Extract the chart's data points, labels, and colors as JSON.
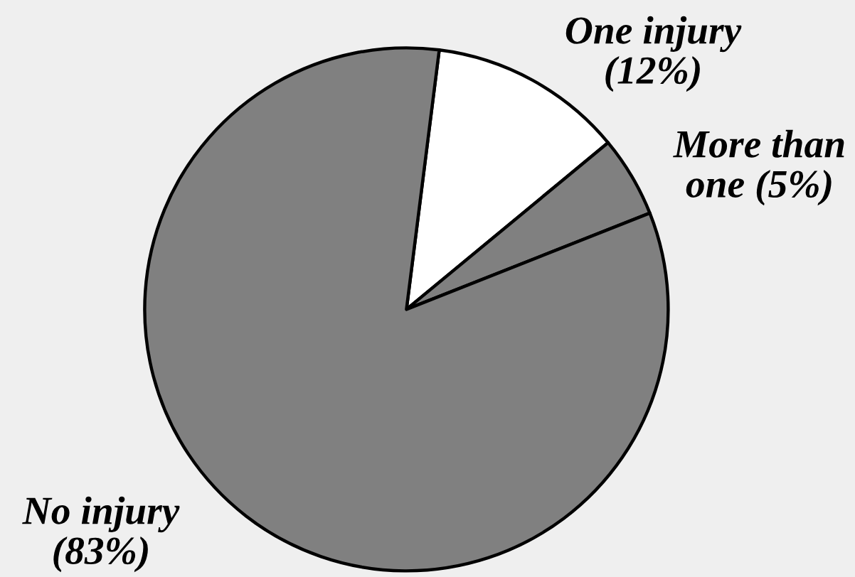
{
  "chart_data": {
    "type": "pie",
    "categories": [
      "One injury",
      "More than one",
      "No injury"
    ],
    "values": [
      12,
      5,
      83
    ],
    "colors": [
      "#ffffff",
      "#808080",
      "#808080"
    ],
    "value_labels": [
      "(12%)",
      "(5%)",
      "(83%)"
    ]
  }
}
